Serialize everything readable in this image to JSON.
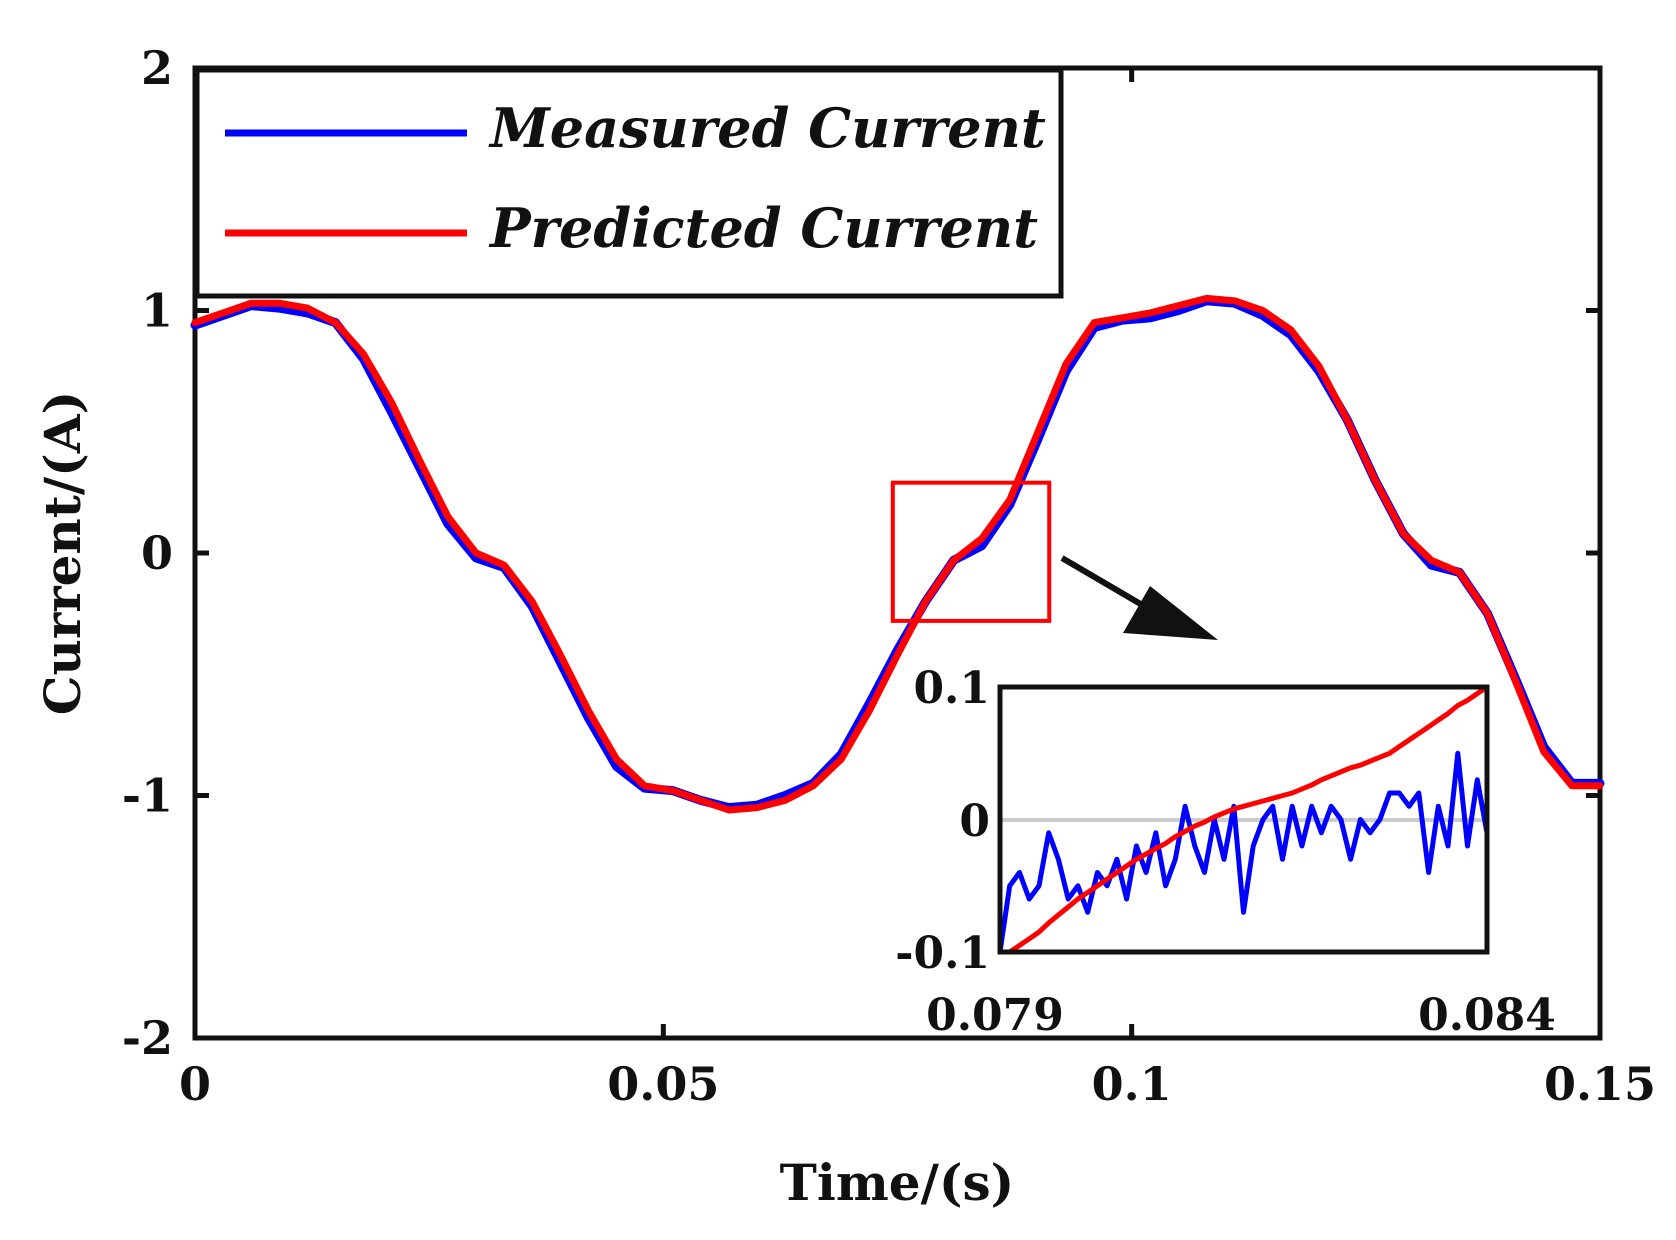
{
  "chart_data": {
    "type": "line",
    "title": "",
    "xlabel": "Time/(s)",
    "ylabel": "Current/(A)",
    "xlim": [
      0,
      0.15
    ],
    "ylim": [
      -2,
      2
    ],
    "xticks": [
      0,
      0.05,
      0.1,
      0.15
    ],
    "xtick_labels": [
      "0",
      "0.05",
      "0.1",
      "0.15"
    ],
    "yticks": [
      -2,
      -1,
      0,
      1,
      2
    ],
    "ytick_labels": [
      "-2",
      "-1",
      "0",
      "1",
      "2"
    ],
    "grid": false,
    "legend": {
      "position": "top-left",
      "entries": [
        "Measured Current",
        "Predicted Current"
      ]
    },
    "series": [
      {
        "name": "Measured Current",
        "color": "#0000ff",
        "x": [
          0,
          0.003,
          0.006,
          0.009,
          0.012,
          0.015,
          0.018,
          0.021,
          0.024,
          0.027,
          0.03,
          0.033,
          0.036,
          0.039,
          0.042,
          0.045,
          0.048,
          0.051,
          0.054,
          0.057,
          0.06,
          0.063,
          0.066,
          0.069,
          0.072,
          0.075,
          0.078,
          0.081,
          0.084,
          0.087,
          0.09,
          0.093,
          0.096,
          0.099,
          0.102,
          0.105,
          0.108,
          0.111,
          0.114,
          0.117,
          0.12,
          0.123,
          0.126,
          0.129,
          0.132,
          0.135,
          0.138,
          0.141,
          0.144,
          0.147,
          0.15
        ],
        "y": [
          0.94,
          0.98,
          1.02,
          1.01,
          0.99,
          0.95,
          0.8,
          0.58,
          0.35,
          0.12,
          -0.02,
          -0.06,
          -0.22,
          -0.45,
          -0.68,
          -0.88,
          -0.97,
          -0.98,
          -1.02,
          -1.05,
          -1.04,
          -1.0,
          -0.95,
          -0.83,
          -0.62,
          -0.4,
          -0.2,
          -0.03,
          0.03,
          0.2,
          0.47,
          0.75,
          0.93,
          0.96,
          0.97,
          1.0,
          1.04,
          1.03,
          0.98,
          0.9,
          0.75,
          0.55,
          0.3,
          0.08,
          -0.05,
          -0.08,
          -0.25,
          -0.52,
          -0.8,
          -0.95,
          -0.95
        ]
      },
      {
        "name": "Predicted Current",
        "color": "#ff0000",
        "x": [
          0,
          0.003,
          0.006,
          0.009,
          0.012,
          0.015,
          0.018,
          0.021,
          0.024,
          0.027,
          0.03,
          0.033,
          0.036,
          0.039,
          0.042,
          0.045,
          0.048,
          0.051,
          0.054,
          0.057,
          0.06,
          0.063,
          0.066,
          0.069,
          0.072,
          0.075,
          0.078,
          0.081,
          0.084,
          0.087,
          0.09,
          0.093,
          0.096,
          0.099,
          0.102,
          0.105,
          0.108,
          0.111,
          0.114,
          0.117,
          0.12,
          0.123,
          0.126,
          0.129,
          0.132,
          0.135,
          0.138,
          0.141,
          0.144,
          0.147,
          0.15
        ],
        "y": [
          0.95,
          0.99,
          1.03,
          1.03,
          1.01,
          0.95,
          0.82,
          0.62,
          0.38,
          0.15,
          0.0,
          -0.05,
          -0.2,
          -0.42,
          -0.65,
          -0.85,
          -0.96,
          -0.98,
          -1.02,
          -1.06,
          -1.05,
          -1.02,
          -0.96,
          -0.85,
          -0.65,
          -0.42,
          -0.2,
          -0.03,
          0.06,
          0.22,
          0.5,
          0.78,
          0.95,
          0.97,
          0.99,
          1.02,
          1.05,
          1.04,
          1.0,
          0.92,
          0.77,
          0.55,
          0.3,
          0.08,
          -0.03,
          -0.08,
          -0.25,
          -0.53,
          -0.82,
          -0.96,
          -0.96
        ]
      }
    ],
    "highlight_region": {
      "x": [
        0.0745,
        0.0912
      ],
      "y": [
        -0.28,
        0.29
      ],
      "color": "#ff0000"
    },
    "inset": {
      "xlim": [
        0.079,
        0.084
      ],
      "ylim": [
        -0.1,
        0.1
      ],
      "xtick_labels": [
        "0.079",
        "0.084"
      ],
      "ytick_labels": [
        "-0.1",
        "0",
        "0.1"
      ],
      "zero_line_color": "#cccccc",
      "series": [
        {
          "name": "Measured Current",
          "color": "#0000ff",
          "x": [
            0.079,
            0.0791,
            0.0792,
            0.0793,
            0.0794,
            0.0795,
            0.0796,
            0.0797,
            0.0798,
            0.0799,
            0.08,
            0.0801,
            0.0802,
            0.0803,
            0.0804,
            0.0805,
            0.0806,
            0.0807,
            0.0808,
            0.0809,
            0.081,
            0.0811,
            0.0812,
            0.0813,
            0.0814,
            0.0815,
            0.0816,
            0.0817,
            0.0818,
            0.0819,
            0.082,
            0.0821,
            0.0822,
            0.0823,
            0.0824,
            0.0825,
            0.0826,
            0.0827,
            0.0828,
            0.0829,
            0.083,
            0.0831,
            0.0832,
            0.0833,
            0.0834,
            0.0835,
            0.0836,
            0.0837,
            0.0838,
            0.0839,
            0.084
          ],
          "y": [
            -0.1,
            -0.05,
            -0.04,
            -0.06,
            -0.05,
            -0.01,
            -0.03,
            -0.06,
            -0.05,
            -0.07,
            -0.04,
            -0.05,
            -0.03,
            -0.06,
            -0.02,
            -0.04,
            -0.01,
            -0.05,
            -0.03,
            0.01,
            -0.02,
            -0.04,
            0.0,
            -0.03,
            0.01,
            -0.07,
            -0.02,
            0.0,
            0.01,
            -0.03,
            0.01,
            -0.02,
            0.01,
            -0.01,
            0.01,
            0.0,
            -0.03,
            0.0,
            -0.01,
            0.0,
            0.02,
            0.02,
            0.01,
            0.02,
            -0.04,
            0.01,
            -0.02,
            0.05,
            -0.02,
            0.03,
            -0.01
          ]
        },
        {
          "name": "Predicted Current",
          "color": "#ff0000",
          "x": [
            0.079,
            0.0791,
            0.0792,
            0.0793,
            0.0794,
            0.0795,
            0.0796,
            0.0797,
            0.0798,
            0.0799,
            0.08,
            0.0801,
            0.0802,
            0.0803,
            0.0804,
            0.0805,
            0.0806,
            0.0807,
            0.0808,
            0.0809,
            0.081,
            0.0811,
            0.0812,
            0.0813,
            0.0814,
            0.0815,
            0.0816,
            0.0817,
            0.0818,
            0.0819,
            0.082,
            0.0821,
            0.0822,
            0.0823,
            0.0824,
            0.0825,
            0.0826,
            0.0827,
            0.0828,
            0.0829,
            0.083,
            0.0831,
            0.0832,
            0.0833,
            0.0834,
            0.0835,
            0.0836,
            0.0837,
            0.0838,
            0.0839,
            0.084
          ],
          "y": [
            -0.105,
            -0.1,
            -0.095,
            -0.09,
            -0.085,
            -0.078,
            -0.072,
            -0.066,
            -0.06,
            -0.055,
            -0.05,
            -0.045,
            -0.04,
            -0.035,
            -0.03,
            -0.026,
            -0.022,
            -0.018,
            -0.013,
            -0.009,
            -0.005,
            -0.002,
            0.002,
            0.005,
            0.008,
            0.01,
            0.012,
            0.014,
            0.016,
            0.018,
            0.02,
            0.023,
            0.026,
            0.03,
            0.033,
            0.036,
            0.039,
            0.041,
            0.044,
            0.047,
            0.05,
            0.055,
            0.06,
            0.065,
            0.07,
            0.075,
            0.08,
            0.086,
            0.09,
            0.095,
            0.1
          ]
        }
      ]
    }
  }
}
